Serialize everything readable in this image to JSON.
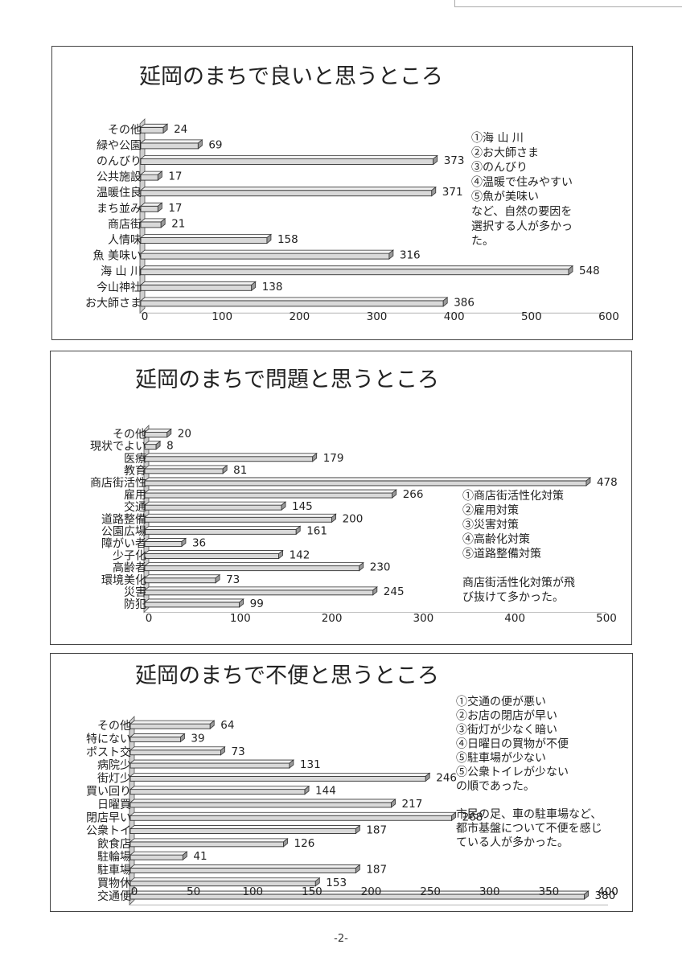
{
  "page_number": "-2-",
  "chart_data": [
    {
      "type": "bar",
      "orientation": "horizontal",
      "title": "延岡のまちで良いと思うところ",
      "categories": [
        "その他",
        "緑や公園",
        "のんびり",
        "公共施設",
        "温暖住良",
        "まち並み",
        "商店街",
        "人情味",
        "魚 美味い",
        "海 山 川",
        "今山神社",
        "お大師さま"
      ],
      "values": [
        24,
        69,
        373,
        17,
        371,
        17,
        21,
        158,
        316,
        548,
        138,
        386
      ],
      "xlim": [
        0,
        600
      ],
      "ticks": [
        "0",
        "100",
        "200",
        "300",
        "400",
        "500",
        "600"
      ],
      "notes": [
        "①海 山 川",
        "②お大師さま",
        "③のんびり",
        "④温暖で住みやすい",
        "⑤魚が美味い",
        "など、自然の要因を",
        "選択する人が多かっ",
        "た。"
      ]
    },
    {
      "type": "bar",
      "orientation": "horizontal",
      "title": "延岡のまちで問題と思うところ",
      "categories": [
        "その他",
        "現状でよい",
        "医療",
        "教育",
        "商店街活性",
        "雇用",
        "交通",
        "道路整備",
        "公園広場",
        "障がい者",
        "少子化",
        "高齢者",
        "環境美化",
        "災害",
        "防犯"
      ],
      "values": [
        20,
        8,
        179,
        81,
        478,
        266,
        145,
        200,
        161,
        36,
        142,
        230,
        73,
        245,
        99
      ],
      "xlim": [
        0,
        500
      ],
      "ticks": [
        "0",
        "100",
        "200",
        "300",
        "400",
        "500"
      ],
      "notes": [
        "①商店街活性化対策",
        "②雇用対策",
        "③災害対策",
        "④高齢化対策",
        "⑤道路整備対策",
        "",
        "商店街活性化対策が飛",
        "び抜けて多かった。"
      ]
    },
    {
      "type": "bar",
      "orientation": "horizontal",
      "title": "延岡のまちで不便と思うところ",
      "categories": [
        "その他",
        "特にない",
        "ポスト交",
        "病院少",
        "街灯少",
        "買い回り",
        "日曜買",
        "閉店早い",
        "公衆トイ",
        "飲食店",
        "駐輪場",
        "駐車場",
        "買物休",
        "交通便"
      ],
      "values": [
        64,
        39,
        73,
        131,
        246,
        144,
        217,
        268,
        187,
        126,
        41,
        187,
        153,
        380
      ],
      "xlim": [
        0,
        400
      ],
      "ticks": [
        "0",
        "50",
        "100",
        "150",
        "200",
        "250",
        "300",
        "350",
        "400"
      ],
      "notes": [
        "①交通の便が悪い",
        "②お店の閉店が早い",
        "③街灯が少なく暗い",
        "④日曜日の買物が不便",
        "⑤駐車場が少ない",
        "⑤公衆トイレが少ない",
        "の順であった。",
        "",
        "市民の足、車の駐車場など、",
        "都市基盤について不便を感じ",
        "ている人が多かった。"
      ]
    }
  ]
}
